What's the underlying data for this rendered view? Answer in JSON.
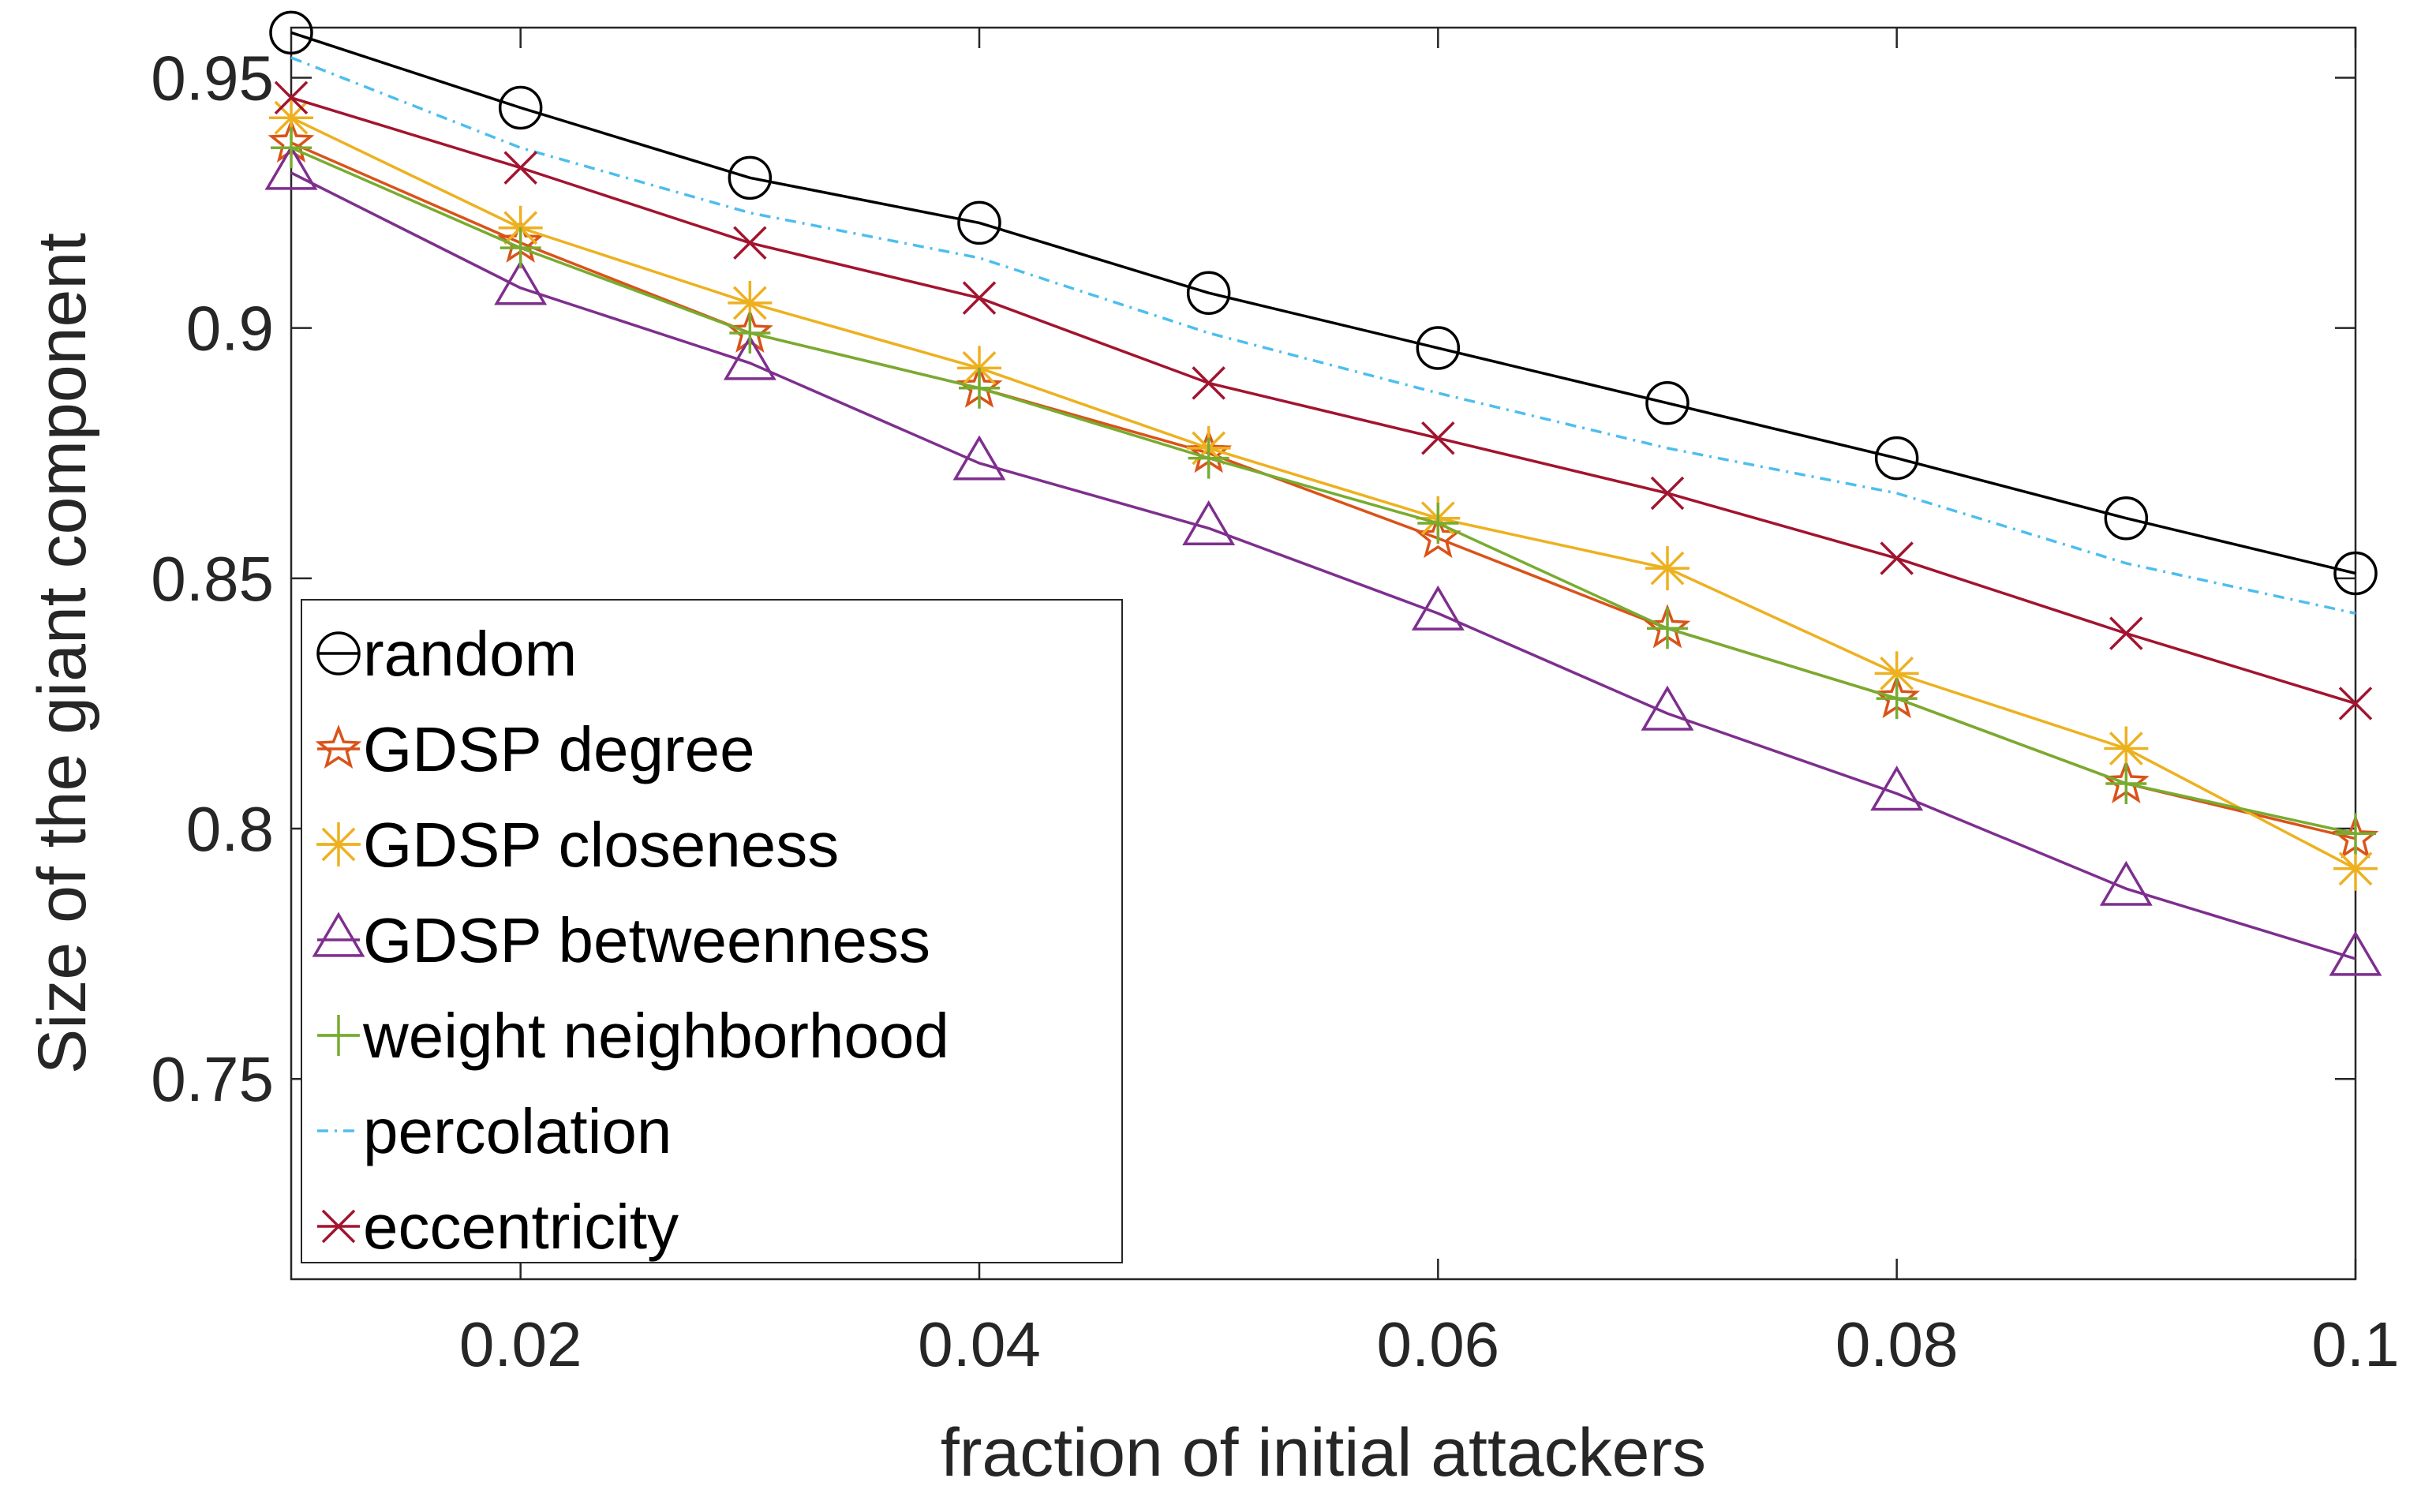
{
  "chart_data": {
    "type": "line",
    "xlabel": "fraction of initial attackers",
    "ylabel": "Size of the giant component",
    "xlim": [
      0.01,
      0.1
    ],
    "ylim": [
      0.71,
      0.96
    ],
    "xticks": [
      0.02,
      0.04,
      0.06,
      0.08,
      0.1
    ],
    "xtick_labels": [
      "0.02",
      "0.04",
      "0.06",
      "0.08",
      "0.1"
    ],
    "yticks": [
      0.75,
      0.8,
      0.85,
      0.9,
      0.95
    ],
    "ytick_labels": [
      "0.75",
      "0.8",
      "0.85",
      "0.9",
      "0.95"
    ],
    "grid": false,
    "legend_position": "bottom-left",
    "x": [
      0.01,
      0.02,
      0.03,
      0.04,
      0.05,
      0.06,
      0.07,
      0.08,
      0.09,
      0.1
    ],
    "series": [
      {
        "name": "random",
        "color": "#000000",
        "marker": "circle",
        "dash": "solid",
        "values": [
          0.959,
          0.944,
          0.93,
          0.921,
          0.907,
          0.896,
          0.885,
          0.874,
          0.862,
          0.851
        ]
      },
      {
        "name": "GDSP degree",
        "color": "#D95319",
        "marker": "star",
        "dash": "solid",
        "values": [
          0.937,
          0.917,
          0.899,
          0.888,
          0.875,
          0.858,
          0.84,
          0.826,
          0.809,
          0.798
        ]
      },
      {
        "name": "GDSP closeness",
        "color": "#EDB120",
        "marker": "asterisk",
        "dash": "solid",
        "values": [
          0.942,
          0.92,
          0.905,
          0.892,
          0.876,
          0.862,
          0.852,
          0.831,
          0.816,
          0.792
        ]
      },
      {
        "name": "GDSP betweenness",
        "color": "#7E2F8E",
        "marker": "triangle",
        "dash": "solid",
        "values": [
          0.931,
          0.908,
          0.893,
          0.873,
          0.86,
          0.843,
          0.823,
          0.807,
          0.788,
          0.774
        ]
      },
      {
        "name": "weight neighborhood",
        "color": "#77AC30",
        "marker": "plus",
        "dash": "solid",
        "values": [
          0.936,
          0.916,
          0.899,
          0.888,
          0.874,
          0.861,
          0.84,
          0.826,
          0.809,
          0.799
        ]
      },
      {
        "name": "percolation",
        "color": "#4DBEEE",
        "marker": "none",
        "dash": "dashdot",
        "values": [
          0.954,
          0.936,
          0.923,
          0.914,
          0.899,
          0.887,
          0.876,
          0.867,
          0.853,
          0.843
        ]
      },
      {
        "name": "eccentricity",
        "color": "#A2142F",
        "marker": "x",
        "dash": "solid",
        "values": [
          0.946,
          0.932,
          0.917,
          0.906,
          0.889,
          0.878,
          0.867,
          0.854,
          0.839,
          0.825
        ]
      }
    ]
  }
}
